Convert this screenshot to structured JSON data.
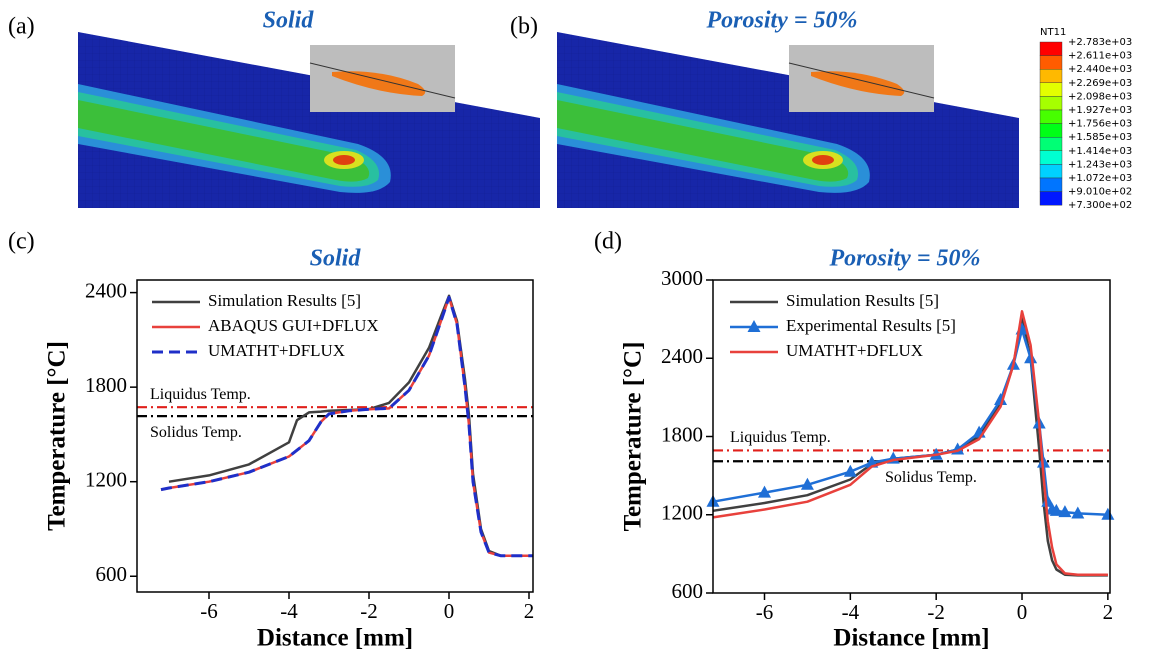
{
  "images": [
    {
      "label": "(a)",
      "title": "Solid"
    },
    {
      "label": "(b)",
      "title": "Porosity = 50%"
    }
  ],
  "colorbar": {
    "title": "NT11",
    "labels": [
      "+2.783e+03",
      "+2.611e+03",
      "+2.440e+03",
      "+2.269e+03",
      "+2.098e+03",
      "+1.927e+03",
      "+1.756e+03",
      "+1.585e+03",
      "+1.414e+03",
      "+1.243e+03",
      "+1.072e+03",
      "+9.010e+02",
      "+7.300e+02"
    ],
    "colors": [
      "#ff0000",
      "#ff5c00",
      "#ffb900",
      "#e3ff00",
      "#a6ff00",
      "#47ff00",
      "#00ff17",
      "#00ff75",
      "#00ffd1",
      "#00d1ff",
      "#0075ff",
      "#0017ff"
    ]
  },
  "chart_data": [
    {
      "type": "line",
      "panel_label": "(c)",
      "title": "Solid",
      "x_label": "Distance [mm]",
      "y_label": "Temperature [°C]",
      "xlim": [
        -7.8,
        2.1
      ],
      "ylim": [
        500,
        2480
      ],
      "xticks": [
        -6,
        -4,
        -2,
        0,
        2
      ],
      "yticks": [
        600,
        1200,
        1800,
        2400
      ],
      "x": [
        -7.2,
        -7,
        -6,
        -5,
        -4,
        -3.8,
        -3.5,
        -3.2,
        -3,
        -2.5,
        -2,
        -1.5,
        -1,
        -0.5,
        -0.2,
        0,
        0.2,
        0.4,
        0.5,
        0.6,
        0.8,
        1,
        1.3,
        2.1
      ],
      "series": [
        {
          "name": "Simulation Results [5]",
          "color": "#404040",
          "style": "solid",
          "values": [
            null,
            1200,
            1240,
            1310,
            1450,
            1590,
            1640,
            1645,
            1650,
            1655,
            1660,
            1700,
            1830,
            2050,
            2250,
            2380,
            2220,
            1850,
            1620,
            1250,
            900,
            760,
            730,
            730
          ]
        },
        {
          "name": "ABAQUS GUI+DFLUX",
          "color": "#e8413c",
          "style": "solid",
          "values": [
            1150,
            1160,
            1200,
            1260,
            1360,
            1400,
            1460,
            1580,
            1630,
            1650,
            1660,
            1665,
            1780,
            2000,
            2220,
            2370,
            2200,
            1800,
            1560,
            1200,
            880,
            750,
            730,
            730
          ]
        },
        {
          "name": "UMATHT+DFLUX",
          "color": "#1f2fc8",
          "style": "dash",
          "values": [
            1150,
            1160,
            1200,
            1260,
            1360,
            1400,
            1460,
            1580,
            1630,
            1650,
            1660,
            1665,
            1780,
            2000,
            2220,
            2370,
            2200,
            1800,
            1560,
            1200,
            880,
            750,
            730,
            730
          ]
        }
      ],
      "hlines": [
        {
          "label": "Liquidus Temp.",
          "value": 1673,
          "color": "#e0201b"
        },
        {
          "label": "Solidus Temp.",
          "value": 1616,
          "color": "#000000"
        }
      ]
    },
    {
      "type": "line",
      "panel_label": "(d)",
      "title": "Porosity = 50%",
      "x_label": "Distance [mm]",
      "y_label": "Temperature [°C]",
      "xlim": [
        -7.2,
        2.05
      ],
      "ylim": [
        600,
        3000
      ],
      "xticks": [
        -6,
        -4,
        -2,
        0,
        2
      ],
      "yticks": [
        600,
        1200,
        1800,
        2400,
        3000
      ],
      "x": [
        -7.2,
        -6,
        -5,
        -4,
        -3.5,
        -3,
        -2,
        -1.5,
        -1,
        -0.5,
        -0.2,
        0,
        0.2,
        0.4,
        0.5,
        0.6,
        0.7,
        0.8,
        1,
        1.3,
        2
      ],
      "series": [
        {
          "name": "Simulation Results [5]",
          "color": "#404040",
          "style": "solid",
          "values": [
            1230,
            1290,
            1350,
            1470,
            1590,
            1630,
            1660,
            1700,
            1800,
            2050,
            2350,
            2720,
            2400,
            1700,
            1300,
            1000,
            850,
            780,
            740,
            735,
            735
          ]
        },
        {
          "name": "Experimental Results [5]",
          "color": "#1f6fd6",
          "style": "solid",
          "marker": "triangle",
          "values": [
            1300,
            1370,
            1430,
            1530,
            1600,
            1630,
            1660,
            1700,
            1830,
            2080,
            2350,
            2620,
            2400,
            1900,
            1600,
            1300,
            1240,
            1230,
            1220,
            1210,
            1200
          ]
        },
        {
          "name": "UMATHT+DFLUX",
          "color": "#e8413c",
          "style": "solid",
          "values": [
            1180,
            1240,
            1300,
            1430,
            1570,
            1620,
            1660,
            1690,
            1780,
            2030,
            2350,
            2760,
            2500,
            1900,
            1500,
            1150,
            950,
            820,
            750,
            740,
            740
          ]
        }
      ],
      "hlines": [
        {
          "label": "Liquidus Temp.",
          "value": 1693,
          "color": "#e0201b"
        },
        {
          "label": "Solidus Temp.",
          "value": 1610,
          "color": "#000000"
        }
      ]
    }
  ]
}
